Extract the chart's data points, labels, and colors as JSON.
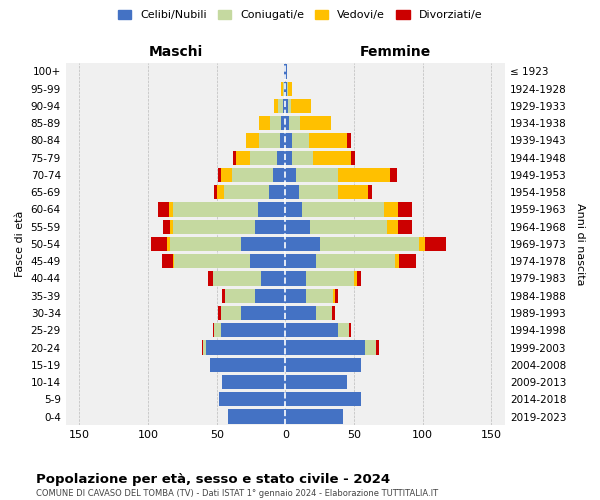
{
  "age_groups": [
    "0-4",
    "5-9",
    "10-14",
    "15-19",
    "20-24",
    "25-29",
    "30-34",
    "35-39",
    "40-44",
    "45-49",
    "50-54",
    "55-59",
    "60-64",
    "65-69",
    "70-74",
    "75-79",
    "80-84",
    "85-89",
    "90-94",
    "95-99",
    "100+"
  ],
  "birth_years": [
    "2019-2023",
    "2014-2018",
    "2009-2013",
    "2004-2008",
    "1999-2003",
    "1994-1998",
    "1989-1993",
    "1984-1988",
    "1979-1983",
    "1974-1978",
    "1969-1973",
    "1964-1968",
    "1959-1963",
    "1954-1958",
    "1949-1953",
    "1944-1948",
    "1939-1943",
    "1934-1938",
    "1929-1933",
    "1924-1928",
    "≤ 1923"
  ],
  "maschi": {
    "celibi": [
      42,
      48,
      46,
      55,
      58,
      47,
      32,
      22,
      18,
      26,
      32,
      22,
      20,
      12,
      9,
      6,
      4,
      3,
      2,
      1,
      1
    ],
    "coniugati": [
      0,
      0,
      0,
      0,
      2,
      5,
      15,
      22,
      35,
      55,
      52,
      60,
      62,
      33,
      30,
      20,
      15,
      8,
      3,
      1,
      0
    ],
    "vedovi": [
      0,
      0,
      0,
      0,
      0,
      0,
      0,
      0,
      0,
      1,
      2,
      2,
      3,
      5,
      8,
      10,
      10,
      8,
      3,
      1,
      0
    ],
    "divorziati": [
      0,
      0,
      0,
      0,
      1,
      1,
      2,
      2,
      3,
      8,
      12,
      5,
      8,
      2,
      2,
      2,
      0,
      0,
      0,
      0,
      0
    ]
  },
  "femmine": {
    "nubili": [
      42,
      55,
      45,
      55,
      58,
      38,
      22,
      15,
      15,
      22,
      25,
      18,
      12,
      10,
      8,
      5,
      5,
      3,
      2,
      1,
      1
    ],
    "coniugate": [
      0,
      0,
      0,
      0,
      8,
      8,
      12,
      20,
      35,
      58,
      72,
      56,
      60,
      28,
      30,
      15,
      12,
      8,
      2,
      1,
      0
    ],
    "vedove": [
      0,
      0,
      0,
      0,
      0,
      0,
      0,
      1,
      2,
      3,
      5,
      8,
      10,
      22,
      38,
      28,
      28,
      22,
      15,
      3,
      0
    ],
    "divorziate": [
      0,
      0,
      0,
      0,
      2,
      2,
      2,
      2,
      3,
      12,
      15,
      10,
      10,
      3,
      5,
      3,
      3,
      0,
      0,
      0,
      0
    ]
  },
  "colors": {
    "celibi": "#4472c4",
    "coniugati": "#c5d9a0",
    "vedovi": "#ffc000",
    "divorziati": "#cc0000"
  },
  "title": "Popolazione per età, sesso e stato civile - 2024",
  "subtitle": "COMUNE DI CAVASO DEL TOMBA (TV) - Dati ISTAT 1° gennaio 2024 - Elaborazione TUTTITALIA.IT",
  "xlabel_left": "Maschi",
  "xlabel_right": "Femmine",
  "ylabel_left": "Fasce di età",
  "ylabel_right": "Anni di nascita",
  "xlim": 160,
  "legend_labels": [
    "Celibi/Nubili",
    "Coniugati/e",
    "Vedovi/e",
    "Divorziati/e"
  ],
  "bg_color": "#f0f0f0",
  "grid_color": "#bbbbbb"
}
